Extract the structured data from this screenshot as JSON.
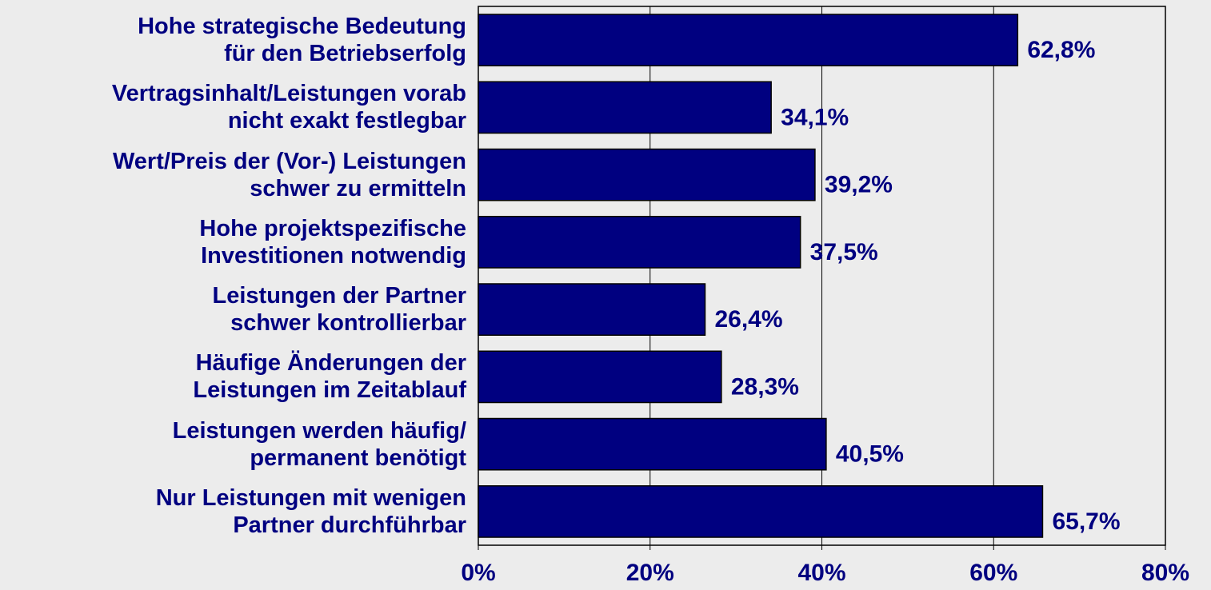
{
  "chart_data": {
    "type": "bar",
    "orientation": "horizontal",
    "categories": [
      "Hohe strategische Bedeutung\nfür den Betriebserfolg",
      "Vertragsinhalt/Leistungen vorab\nnicht exakt festlegbar",
      "Wert/Preis der (Vor-) Leistungen\nschwer zu ermitteln",
      "Hohe projektspezifische\nInvestitionen notwendig",
      "Leistungen der Partner\nschwer kontrollierbar",
      "Häufige Änderungen der\nLeistungen im Zeitablauf",
      "Leistungen werden häufig/\npermanent benötigt",
      "Nur Leistungen mit wenigen\nPartner durchführbar"
    ],
    "values": [
      62.8,
      34.1,
      39.2,
      37.5,
      26.4,
      28.3,
      40.5,
      65.7
    ],
    "value_labels": [
      "62,8%",
      "34,1%",
      "39,2%",
      "37,5%",
      "26,4%",
      "28,3%",
      "40,5%",
      "65,7%"
    ],
    "color": "#000080",
    "xlim": [
      0,
      80
    ],
    "xticks": [
      {
        "value": 0,
        "label": "0%"
      },
      {
        "value": 20,
        "label": "20%"
      },
      {
        "value": 40,
        "label": "40%"
      },
      {
        "value": 60,
        "label": "60%"
      },
      {
        "value": 80,
        "label": "80%"
      }
    ],
    "grid": true
  }
}
